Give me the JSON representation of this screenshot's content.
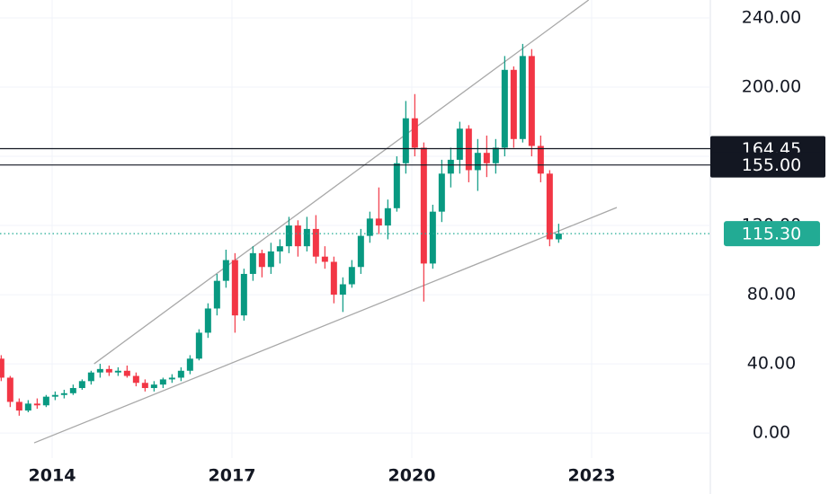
{
  "chart_data": {
    "type": "candlestick",
    "x": [
      2013.15,
      2013.3,
      2013.45,
      2013.6,
      2013.75,
      2013.9,
      2014.05,
      2014.2,
      2014.35,
      2014.5,
      2014.65,
      2014.8,
      2014.95,
      2015.1,
      2015.25,
      2015.4,
      2015.55,
      2015.7,
      2015.85,
      2016.0,
      2016.15,
      2016.3,
      2016.45,
      2016.6,
      2016.75,
      2016.9,
      2017.05,
      2017.2,
      2017.35,
      2017.5,
      2017.65,
      2017.8,
      2017.95,
      2018.1,
      2018.25,
      2018.4,
      2018.55,
      2018.7,
      2018.85,
      2019.0,
      2019.15,
      2019.3,
      2019.45,
      2019.6,
      2019.75,
      2019.9,
      2020.05,
      2020.2,
      2020.35,
      2020.5,
      2020.65,
      2020.8,
      2020.95,
      2021.1,
      2021.25,
      2021.4,
      2021.55,
      2021.7,
      2021.85,
      2022.0,
      2022.15,
      2022.3,
      2022.45
    ],
    "open": [
      43,
      32,
      18,
      13,
      17,
      16,
      21,
      22,
      23,
      26,
      30,
      35,
      37,
      35,
      36,
      33,
      29,
      26,
      28,
      31,
      32,
      36,
      43,
      58,
      72,
      88,
      100,
      68,
      92,
      104,
      96,
      105,
      108,
      120,
      108,
      118,
      102,
      99,
      80,
      86,
      96,
      114,
      124,
      120,
      130,
      156,
      182,
      165,
      98,
      128,
      150,
      158,
      176,
      152,
      162,
      156,
      165,
      210,
      170,
      218,
      166,
      150,
      112
    ],
    "high": [
      45,
      33,
      20,
      19,
      20,
      22,
      24,
      25,
      28,
      31,
      36,
      40,
      39,
      38,
      39,
      35,
      31,
      30,
      32,
      34,
      38,
      45,
      60,
      75,
      92,
      106,
      104,
      95,
      108,
      106,
      110,
      112,
      125,
      123,
      125,
      126,
      108,
      102,
      90,
      100,
      118,
      128,
      142,
      135,
      160,
      192,
      196,
      168,
      132,
      158,
      165,
      180,
      178,
      170,
      172,
      170,
      218,
      212,
      225,
      222,
      172,
      152,
      121
    ],
    "low": [
      30,
      15,
      10,
      12,
      14,
      15,
      19,
      20,
      22,
      25,
      28,
      32,
      33,
      33,
      32,
      27,
      24,
      24,
      26,
      29,
      30,
      34,
      42,
      55,
      68,
      84,
      58,
      65,
      88,
      90,
      92,
      98,
      104,
      102,
      105,
      98,
      95,
      75,
      70,
      84,
      92,
      110,
      115,
      112,
      128,
      150,
      160,
      76,
      95,
      122,
      142,
      150,
      145,
      140,
      148,
      150,
      160,
      165,
      168,
      160,
      145,
      108,
      110
    ],
    "close": [
      32,
      18,
      13,
      17,
      16,
      21,
      22,
      23,
      26,
      30,
      35,
      37,
      35,
      36,
      33,
      29,
      26,
      28,
      31,
      32,
      36,
      43,
      58,
      72,
      88,
      100,
      68,
      92,
      104,
      96,
      105,
      108,
      120,
      108,
      118,
      102,
      99,
      80,
      86,
      96,
      114,
      124,
      120,
      130,
      156,
      182,
      165,
      98,
      128,
      150,
      158,
      176,
      152,
      162,
      156,
      165,
      210,
      170,
      218,
      166,
      150,
      112,
      115.3
    ],
    "up_color": "#089981",
    "down_color": "#f23645",
    "xlim": [
      2013.13,
      2024.98
    ],
    "xticks": [
      2014,
      2017,
      2020,
      2023
    ],
    "ylim": [
      -14.5,
      250.4
    ],
    "yticks": [
      {
        "value": 0,
        "label": "0.00"
      },
      {
        "value": 40,
        "label": "40.00"
      },
      {
        "value": 80,
        "label": "80.00"
      },
      {
        "value": 120,
        "label": "120.00"
      },
      {
        "value": 160,
        "label": "160.00"
      },
      {
        "value": 200,
        "label": "200.00"
      },
      {
        "value": 240,
        "label": "240.00"
      }
    ],
    "grid": true,
    "trend_lines": [
      {
        "x": [
          2014.7,
          2022.95
        ],
        "y": [
          40,
          250.4
        ],
        "color": "#a8a8a8"
      },
      {
        "x": [
          2013.7,
          2023.42
        ],
        "y": [
          -5.7,
          130.4
        ],
        "color": "#a8a8a8"
      }
    ],
    "price_lines": [
      {
        "value": 164.45,
        "label": "164.45"
      },
      {
        "value": 155,
        "label": "155.00"
      }
    ],
    "price_line_color": "#131722",
    "last_price": {
      "value": 115.3,
      "label": "115.30"
    },
    "last_price_color": "#22ab94"
  }
}
